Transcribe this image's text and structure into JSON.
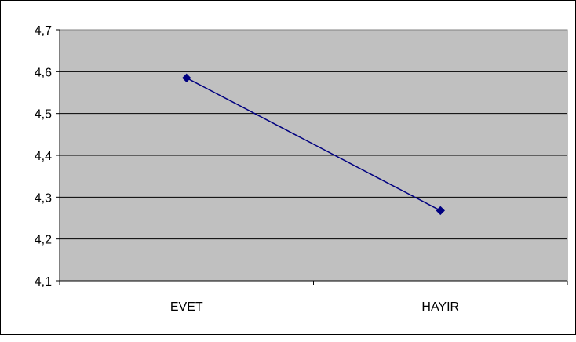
{
  "chart_data": {
    "type": "line",
    "title": "",
    "xlabel": "",
    "ylabel": "",
    "categories": [
      "EVET",
      "HAYIR"
    ],
    "series": [
      {
        "values": [
          4.585,
          4.268
        ],
        "color": "#000080",
        "marker": "diamond"
      }
    ],
    "ylim": [
      4.1,
      4.7
    ],
    "y_ticks": [
      "4,1",
      "4,2",
      "4,3",
      "4,4",
      "4,5",
      "4,6",
      "4,7"
    ],
    "grid": true,
    "legend": "none",
    "plot_background": "#c0c0c0"
  }
}
